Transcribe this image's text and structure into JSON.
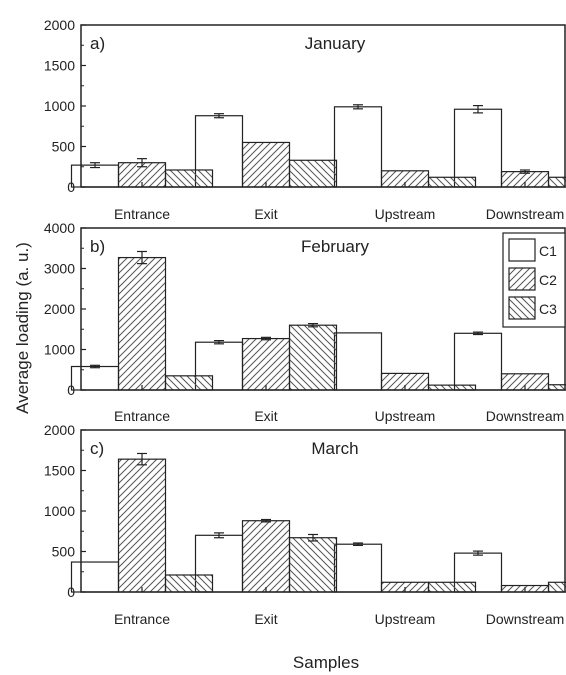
{
  "figure": {
    "ylabel": "Average loading (a. u.)",
    "xlabel": "Samples"
  },
  "legend": {
    "entries": [
      {
        "name": "C1",
        "pattern": "none"
      },
      {
        "name": "C2",
        "pattern": "diagonal-up"
      },
      {
        "name": "C3",
        "pattern": "diagonal-down"
      }
    ]
  },
  "colors": {
    "axis": "#222222",
    "bar_fill": "#ffffff",
    "hatch": "#555555"
  },
  "chart_data": [
    {
      "type": "bar",
      "panel": "a)",
      "title": "January",
      "categories": [
        "Entrance",
        "Exit",
        "Upstream",
        "Downstream"
      ],
      "ylim": [
        0,
        2000
      ],
      "yticks": [
        0,
        500,
        1000,
        1500,
        2000
      ],
      "grid": false,
      "series": [
        {
          "name": "C1",
          "values": [
            270,
            880,
            990,
            960
          ],
          "errors": [
            30,
            25,
            25,
            45
          ]
        },
        {
          "name": "C2",
          "values": [
            300,
            550,
            200,
            190
          ],
          "errors": [
            50,
            0,
            0,
            20
          ]
        },
        {
          "name": "C3",
          "values": [
            210,
            330,
            120,
            120
          ],
          "errors": [
            0,
            0,
            0,
            0
          ]
        }
      ]
    },
    {
      "type": "bar",
      "panel": "b)",
      "title": "February",
      "categories": [
        "Entrance",
        "Exit",
        "Upstream",
        "Downstream"
      ],
      "ylim": [
        0,
        4000
      ],
      "yticks": [
        0,
        1000,
        2000,
        3000,
        4000
      ],
      "grid": false,
      "legend_position": "top-right",
      "series": [
        {
          "name": "C1",
          "values": [
            580,
            1180,
            1410,
            1400
          ],
          "errors": [
            30,
            40,
            0,
            30
          ]
        },
        {
          "name": "C2",
          "values": [
            3270,
            1270,
            410,
            400
          ],
          "errors": [
            150,
            30,
            0,
            0
          ]
        },
        {
          "name": "C3",
          "values": [
            350,
            1600,
            120,
            130
          ],
          "errors": [
            0,
            40,
            0,
            0
          ]
        }
      ]
    },
    {
      "type": "bar",
      "panel": "c)",
      "title": "March",
      "categories": [
        "Entrance",
        "Exit",
        "Upstream",
        "Downstream"
      ],
      "ylim": [
        0,
        2000
      ],
      "yticks": [
        0,
        500,
        1000,
        1500,
        2000
      ],
      "grid": false,
      "series": [
        {
          "name": "C1",
          "values": [
            370,
            700,
            590,
            480
          ],
          "errors": [
            0,
            30,
            15,
            25
          ]
        },
        {
          "name": "C2",
          "values": [
            1640,
            880,
            120,
            80
          ],
          "errors": [
            70,
            15,
            0,
            0
          ]
        },
        {
          "name": "C3",
          "values": [
            210,
            670,
            120,
            120
          ],
          "errors": [
            0,
            40,
            0,
            0
          ]
        }
      ]
    }
  ]
}
